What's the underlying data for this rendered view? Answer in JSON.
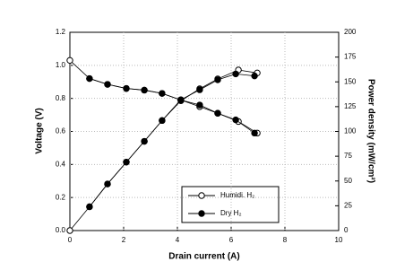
{
  "chart_data": {
    "type": "line",
    "xlabel": "Drain current  (A)",
    "ylabel": "Voltage  (V)",
    "y2label": "Power density  (mW/cm²)",
    "xlim": [
      0,
      10
    ],
    "xticks": [
      0,
      2,
      4,
      6,
      8,
      10
    ],
    "ylim": [
      0,
      1.2
    ],
    "yticks": [
      {
        "value": 0,
        "label": "0.0"
      },
      0.2,
      0.4,
      0.6,
      0.8,
      {
        "value": 1,
        "label": "1.0"
      },
      1.2
    ],
    "y2lim": [
      0,
      200
    ],
    "y2ticks": [
      0,
      25,
      50,
      75,
      100,
      125,
      150,
      175,
      200
    ],
    "grid": true,
    "legend": "lower right",
    "series": [
      {
        "name": "Humidi. H₂",
        "marker": "open",
        "color": "#000000",
        "x": [
          0,
          0.73,
          1.4,
          2.1,
          2.77,
          3.43,
          4.13,
          4.83,
          5.5,
          6.27,
          6.97
        ],
        "values": [
          1.03,
          0.92,
          0.885,
          0.86,
          0.85,
          0.83,
          0.79,
          0.75,
          0.71,
          0.66,
          0.59
        ],
        "y2_values": [
          0,
          24,
          47,
          69,
          90,
          111,
          131,
          143,
          153,
          162,
          159
        ]
      },
      {
        "name": "Dry H₂",
        "marker": "filled",
        "color": "#000000",
        "x": [
          0.73,
          1.4,
          2.1,
          2.77,
          3.43,
          4.13,
          4.83,
          5.5,
          6.17,
          6.87
        ],
        "values": [
          0.92,
          0.885,
          0.86,
          0.85,
          0.83,
          0.79,
          0.76,
          0.71,
          0.67,
          0.59
        ],
        "y2_values": [
          24,
          47,
          69,
          90,
          111,
          132,
          142,
          152,
          158,
          156
        ]
      }
    ]
  }
}
